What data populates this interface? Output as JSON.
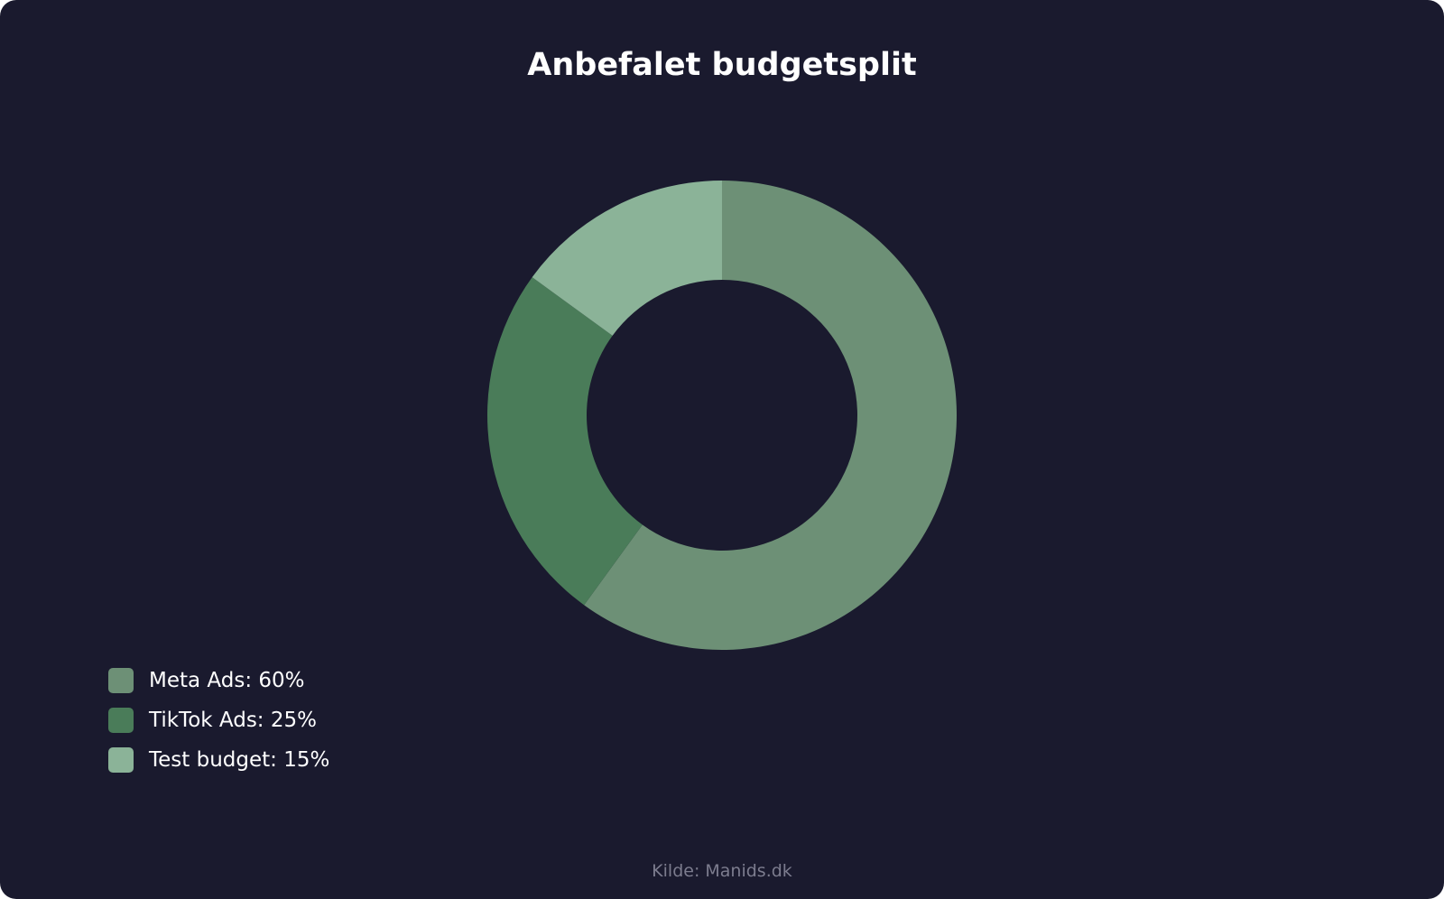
{
  "chart_data": {
    "type": "pie",
    "title": "Anbefalet budgetsplit",
    "categories": [
      "Meta Ads",
      "TikTok Ads",
      "Test budget"
    ],
    "values": [
      60,
      25,
      15
    ],
    "unit": "%",
    "legend_labels": [
      "Meta Ads: 60%",
      "TikTok Ads: 25%",
      "Test budget: 15%"
    ],
    "colors": [
      "#6d9076",
      "#4a7c59",
      "#8bb398"
    ],
    "legend_position": "bottom-left",
    "style": "donut"
  },
  "source": "Kilde: Manids.dk",
  "colors": {
    "background": "#1a1a2e",
    "title": "#ffffff",
    "source": "#7c7c8e"
  }
}
